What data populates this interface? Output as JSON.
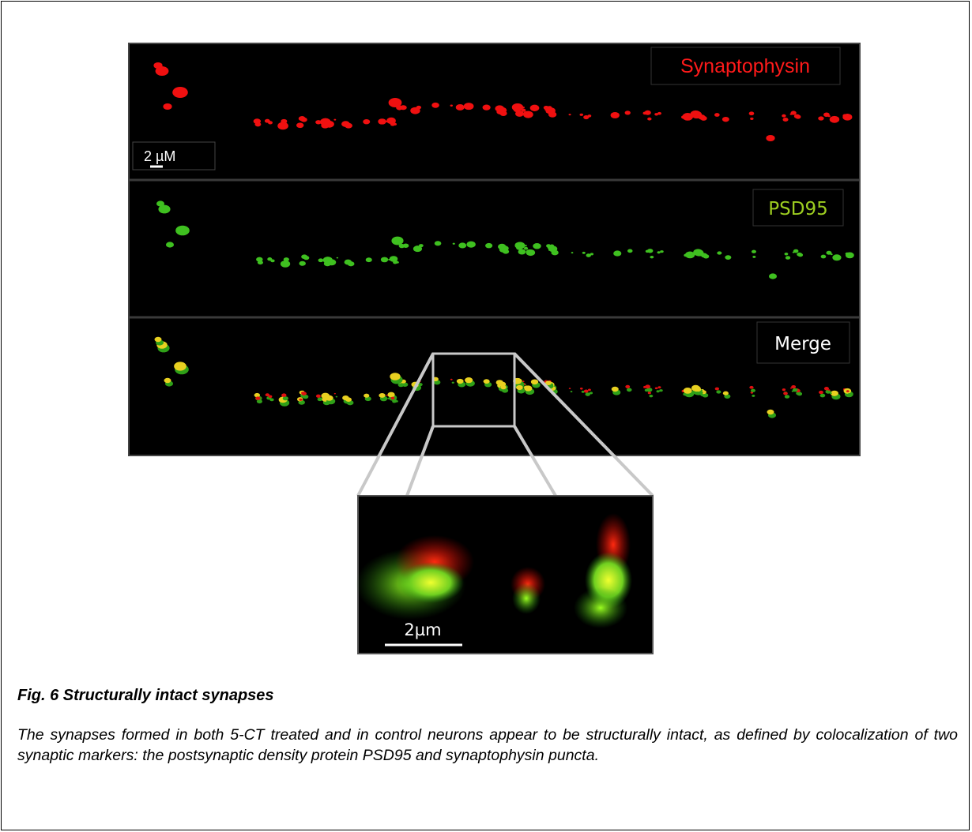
{
  "figure": {
    "panels": [
      {
        "label": "Synaptophysin"
      },
      {
        "label": "PSD95"
      },
      {
        "label": "Merge"
      }
    ],
    "scale_bar": "2 µM",
    "inset_scale_bar": "2µm"
  },
  "caption": {
    "title": "Fig. 6 Structurally intact synapses",
    "text": "The synapses formed in both 5-CT treated and in control neurons appear to be structurally intact, as defined by colocalization of two synaptic markers: the postsynaptic density protein PSD95 and synaptophysin puncta."
  }
}
